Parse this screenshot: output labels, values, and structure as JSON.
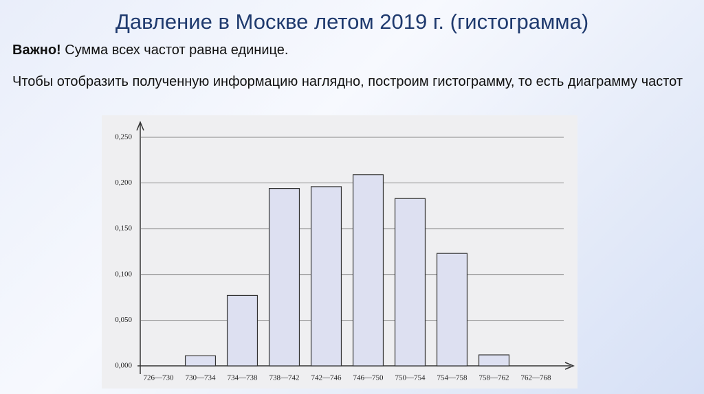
{
  "slide": {
    "title": "Давление в Москве летом 2019 г. (гистограмма)",
    "note_label": "Важно!",
    "note_text": "Сумма всех частот равна единице.",
    "paragraph": "Чтобы отобразить полученную информацию наглядно, построим гистограмму, то есть диаграмму частот"
  },
  "chart_data": {
    "type": "bar",
    "categories": [
      "726—730",
      "730—734",
      "734—738",
      "738—742",
      "742—746",
      "746—750",
      "750—754",
      "754—758",
      "758—762",
      "762—768"
    ],
    "values": [
      0,
      0.011,
      0.077,
      0.194,
      0.196,
      0.209,
      0.183,
      0.123,
      0.012,
      0
    ],
    "color": "#dde0f1",
    "ylim": [
      0,
      0.25
    ],
    "yticks": [
      {
        "value": 0,
        "label": "0,000"
      },
      {
        "value": 0.05,
        "label": "0,050"
      },
      {
        "value": 0.1,
        "label": "0,100"
      },
      {
        "value": 0.15,
        "label": "0,150"
      },
      {
        "value": 0.2,
        "label": "0,200"
      },
      {
        "value": 0.25,
        "label": "0,250"
      }
    ],
    "grid": true
  }
}
